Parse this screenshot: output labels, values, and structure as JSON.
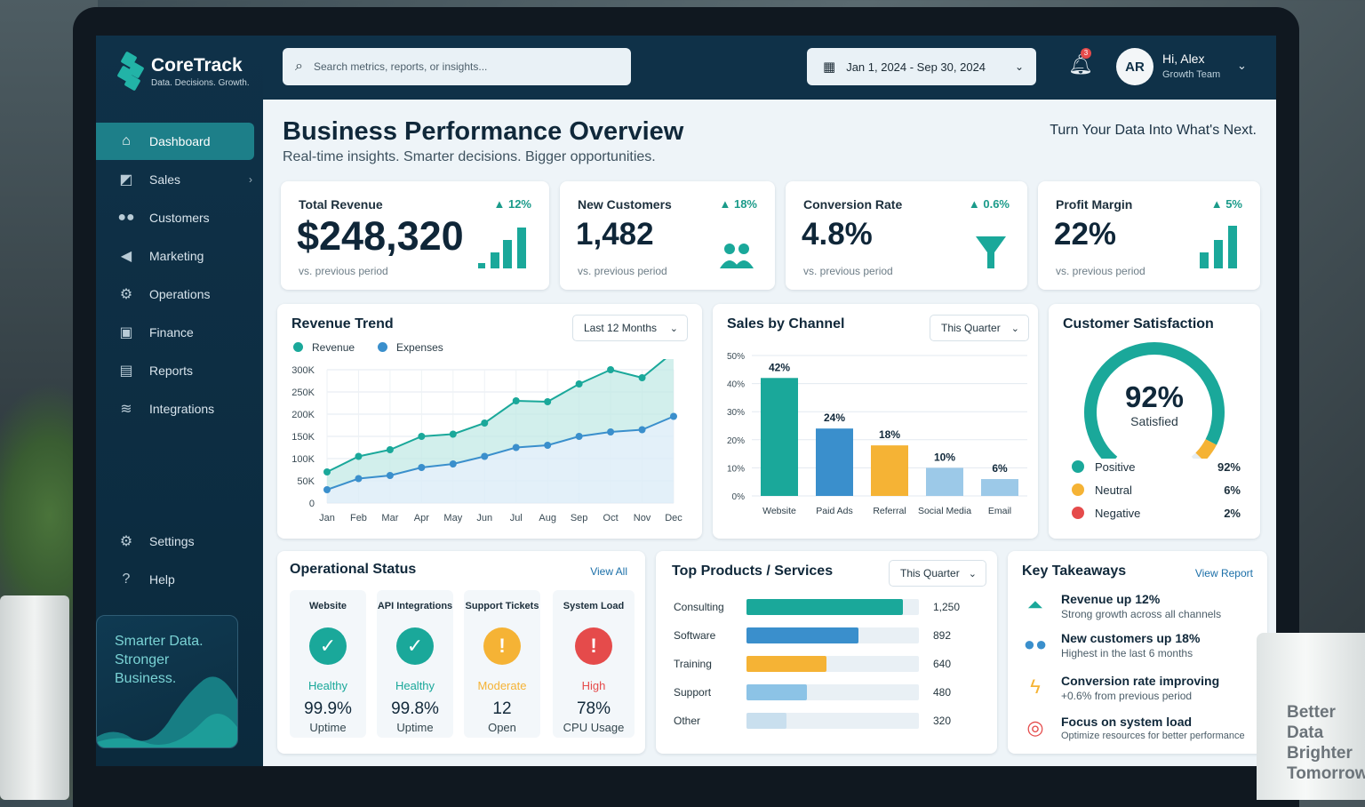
{
  "app": {
    "name": "CoreTrack",
    "tagline": "Data. Decisions. Growth."
  },
  "sidebar": {
    "items": [
      {
        "label": "Dashboard",
        "icon": "home-icon"
      },
      {
        "label": "Sales",
        "icon": "sales-icon"
      },
      {
        "label": "Customers",
        "icon": "users-icon"
      },
      {
        "label": "Marketing",
        "icon": "megaphone-icon"
      },
      {
        "label": "Operations",
        "icon": "gear-icon"
      },
      {
        "label": "Finance",
        "icon": "wallet-icon"
      },
      {
        "label": "Reports",
        "icon": "report-icon"
      },
      {
        "label": "Integrations",
        "icon": "layers-icon"
      }
    ],
    "bottom": [
      {
        "label": "Settings",
        "icon": "gear-icon"
      },
      {
        "label": "Help",
        "icon": "help-icon"
      }
    ],
    "promo": "Smarter Data. Stronger Business."
  },
  "topbar": {
    "search_placeholder": "Search metrics, reports, or insights...",
    "date_range": "Jan 1, 2024 - Sep 30, 2024",
    "notification_count": "3",
    "avatar_initials": "AR",
    "greeting": "Hi, Alex",
    "role": "Growth Team"
  },
  "header": {
    "title": "Business Performance Overview",
    "subtitle": "Real-time insights. Smarter decisions. Bigger opportunities.",
    "tagline": "Turn Your Data Into What's Next."
  },
  "kpis": [
    {
      "label": "Total Revenue",
      "delta": "12%",
      "value": "$248,320",
      "compare": "vs. previous period"
    },
    {
      "label": "New Customers",
      "delta": "18%",
      "value": "1,482",
      "compare": "vs. previous period"
    },
    {
      "label": "Conversion Rate",
      "delta": "0.6%",
      "value": "4.8%",
      "compare": "vs. previous period"
    },
    {
      "label": "Profit Margin",
      "delta": "5%",
      "value": "22%",
      "compare": "vs. previous period"
    }
  ],
  "revenue_trend": {
    "title": "Revenue Trend",
    "filter": "Last 12 Months"
  },
  "sales_channel": {
    "title": "Sales by Channel",
    "filter": "This Quarter"
  },
  "satisfaction": {
    "title": "Customer Satisfaction",
    "value": "92%",
    "label": "Satisfied",
    "gauge_fraction": 0.92,
    "breakdown": [
      {
        "label": "Positive",
        "value": "92%",
        "color": "#1aa89a"
      },
      {
        "label": "Neutral",
        "value": "6%",
        "color": "#f5b335"
      },
      {
        "label": "Negative",
        "value": "2%",
        "color": "#e54b4b"
      }
    ]
  },
  "operational": {
    "title": "Operational Status",
    "link": "View All",
    "tiles": [
      {
        "title": "Website",
        "status": "Healthy",
        "value": "99.9%",
        "sub": "Uptime",
        "symbol": "✓",
        "color": "#1aa89a"
      },
      {
        "title": "API Integrations",
        "status": "Healthy",
        "value": "99.8%",
        "sub": "Uptime",
        "symbol": "✓",
        "color": "#1aa89a"
      },
      {
        "title": "Support Tickets",
        "status": "Moderate",
        "value": "12",
        "sub": "Open",
        "symbol": "!",
        "color": "#f5b335"
      },
      {
        "title": "System Load",
        "status": "High",
        "value": "78%",
        "sub": "CPU Usage",
        "symbol": "!",
        "color": "#e54b4b"
      }
    ]
  },
  "top_products": {
    "title": "Top Products / Services",
    "filter": "This Quarter",
    "rows": [
      {
        "name": "Consulting",
        "count": "1,250",
        "value": 1250,
        "color": "#1aa89a"
      },
      {
        "name": "Software",
        "count": "892",
        "value": 892,
        "color": "#3a8fcc"
      },
      {
        "name": "Training",
        "count": "640",
        "value": 640,
        "color": "#f5b335"
      },
      {
        "name": "Support",
        "count": "480",
        "value": 480,
        "color": "#8cc3e6"
      },
      {
        "name": "Other",
        "count": "320",
        "value": 320,
        "color": "#c9dfee"
      }
    ]
  },
  "takeaways": {
    "title": "Key Takeaways",
    "link": "View Report",
    "items": [
      {
        "head": "Revenue up 12%",
        "sub": "Strong growth across all channels",
        "icon": "trend-up-icon",
        "color": "#1aa89a"
      },
      {
        "head": "New customers up 18%",
        "sub": "Highest in the last 6 months",
        "icon": "users-icon",
        "color": "#3a8fcc"
      },
      {
        "head": "Conversion rate improving",
        "sub": "+0.6% from previous period",
        "icon": "lightning-icon",
        "color": "#f5b335"
      },
      {
        "head": "Focus on system load",
        "sub": "Optimize resources for better performance",
        "icon": "target-icon",
        "color": "#e54b4b"
      }
    ]
  },
  "mug_text": "Better\nData\nBrighter\nTomorrow",
  "chart_data": [
    {
      "type": "line",
      "x": [
        "Jan",
        "Feb",
        "Mar",
        "Apr",
        "May",
        "Jun",
        "Jul",
        "Aug",
        "Sep",
        "Oct",
        "Nov",
        "Dec"
      ],
      "series": [
        {
          "name": "Revenue",
          "color": "#1aa89a",
          "values": [
            70000,
            105000,
            120000,
            150000,
            155000,
            180000,
            230000,
            228000,
            268000,
            300000,
            282000,
            340000
          ]
        },
        {
          "name": "Expenses",
          "color": "#3a8fcc",
          "values": [
            30000,
            55000,
            62000,
            80000,
            88000,
            105000,
            125000,
            130000,
            150000,
            160000,
            165000,
            195000
          ]
        }
      ],
      "yticks": [
        "0",
        "50K",
        "100K",
        "150K",
        "200K",
        "250K",
        "300K"
      ],
      "ylim": [
        0,
        300000
      ]
    },
    {
      "type": "bar",
      "categories": [
        "Website",
        "Paid Ads",
        "Referral",
        "Social Media",
        "Email"
      ],
      "values": [
        42,
        24,
        18,
        10,
        6
      ],
      "labels": [
        "42%",
        "24%",
        "18%",
        "10%",
        "6%"
      ],
      "colors": [
        "#1aa89a",
        "#3a8fcc",
        "#f5b335",
        "#9cc9e8",
        "#9cc9e8"
      ],
      "yticks": [
        "0%",
        "10%",
        "20%",
        "30%",
        "40%",
        "50%"
      ],
      "ylim": [
        0,
        50
      ]
    }
  ]
}
